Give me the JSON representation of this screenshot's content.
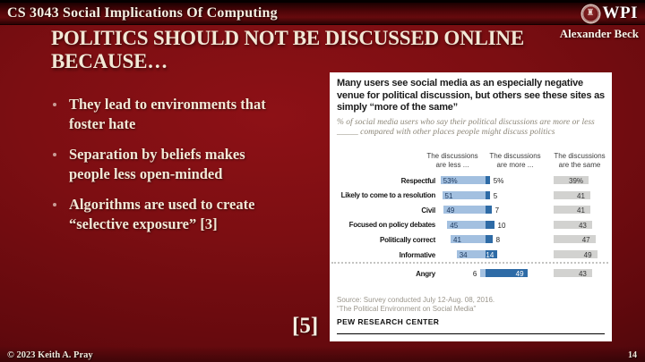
{
  "header": {
    "course_title": "CS 3043 Social Implications Of Computing",
    "logo_text": "WPI"
  },
  "slide": {
    "title_line1": "POLITICS SHOULD NOT BE DISCUSSED ONLINE",
    "title_line2": "BECAUSE…",
    "author": "Alexander Beck",
    "bullets": [
      "They lead to environments that foster hate",
      "Separation by beliefs makes people less open-minded",
      "Algorithms are used to create “selective exposure” [3]"
    ],
    "citation": "[5]"
  },
  "chart": {
    "title": "Many users see social media as an especially negative venue for political discussion, but others see these sites as simply “more of the same”",
    "subtitle_line1": "% of social media users who say their political discussions are more or less",
    "subtitle_line2": "_____ compared with other places people might discuss politics",
    "source_line1": "Source: Survey conducted July 12-Aug. 08, 2016.",
    "source_line2": "“The Political Environment on Social Media”",
    "brand": "PEW RESEARCH CENTER",
    "colors": {
      "less": "#a3c0e0",
      "more": "#2e6ba6",
      "same": "#d2d2d0",
      "value_navy": "#1f3a5f",
      "value_dark": "#222222",
      "value_gray": "#333333"
    },
    "chart_data": {
      "type": "bar",
      "orientation": "horizontal",
      "column_headers": [
        [
          "The discussions",
          "are less ..."
        ],
        [
          "The discussions",
          "are more ..."
        ],
        [
          "The discussions",
          "are the same"
        ]
      ],
      "categories": [
        "Respectful",
        "Likely to come to a resolution",
        "Civil",
        "Focused on policy debates",
        "Politically correct",
        "Informative",
        "Angry"
      ],
      "series": [
        {
          "name": "The discussions are less ...",
          "values": [
            53,
            51,
            49,
            45,
            41,
            34,
            6
          ]
        },
        {
          "name": "The discussions are more ...",
          "values": [
            5,
            5,
            7,
            10,
            8,
            14,
            49
          ]
        },
        {
          "name": "The discussions are the same",
          "values": [
            39,
            41,
            41,
            43,
            47,
            49,
            43
          ]
        }
      ],
      "value_suffix_first_row_only": "%",
      "separator_before_category": "Angry",
      "xlim": [
        0,
        60
      ],
      "legend_position": "column-headers",
      "grid": false
    }
  },
  "footer": {
    "copyright": "© 2023 Keith A. Pray",
    "page_number": "14"
  }
}
